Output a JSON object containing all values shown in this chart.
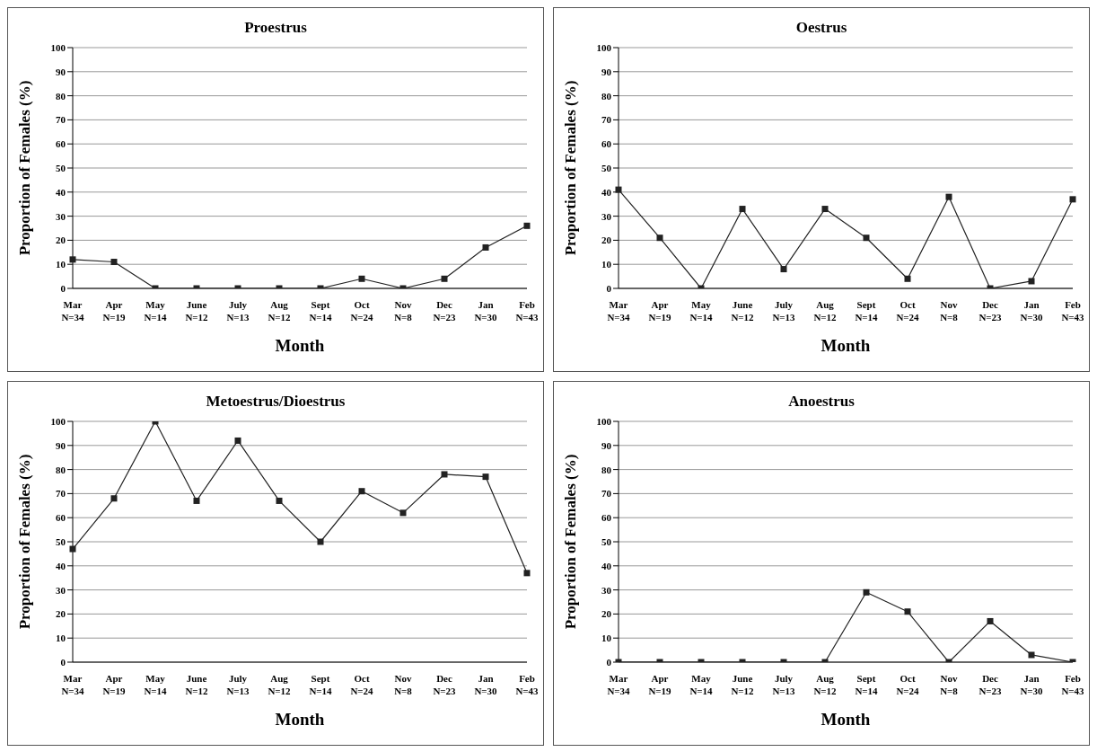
{
  "chart_data": [
    {
      "type": "line",
      "title": "Proestrus",
      "xlabel": "Month",
      "ylabel": "Proportion of Females (%)",
      "categories": [
        "Mar\nN=34",
        "Apr\nN=19",
        "May\nN=14",
        "June\nN=12",
        "July\nN=13",
        "Aug\nN=12",
        "Sept\nN=14",
        "Oct\nN=24",
        "Nov\nN=8",
        "Dec\nN=23",
        "Jan\nN=30",
        "Feb\nN=43"
      ],
      "series": [
        {
          "color": "#222222",
          "values": [
            12,
            11,
            0,
            0,
            0,
            0,
            0,
            4,
            0,
            4,
            17,
            26
          ]
        }
      ],
      "ylim": [
        0,
        100
      ],
      "yticks": [
        0,
        10,
        20,
        30,
        40,
        50,
        60,
        70,
        80,
        90,
        100
      ],
      "grid": "y",
      "marker": "square",
      "line_style": "solid"
    },
    {
      "type": "line",
      "title": "Oestrus",
      "xlabel": "Month",
      "ylabel": "Proportion of Females (%)",
      "categories": [
        "Mar\nN=34",
        "Apr\nN=19",
        "May\nN=14",
        "June\nN=12",
        "July\nN=13",
        "Aug\nN=12",
        "Sept\nN=14",
        "Oct\nN=24",
        "Nov\nN=8",
        "Dec\nN=23",
        "Jan\nN=30",
        "Feb\nN=43"
      ],
      "series": [
        {
          "color": "#222222",
          "values": [
            41,
            21,
            0,
            33,
            8,
            33,
            21,
            4,
            38,
            0,
            3,
            37
          ]
        }
      ],
      "ylim": [
        0,
        100
      ],
      "yticks": [
        0,
        10,
        20,
        30,
        40,
        50,
        60,
        70,
        80,
        90,
        100
      ],
      "grid": "y",
      "marker": "square",
      "line_style": "solid"
    },
    {
      "type": "line",
      "title": "Metoestrus/Dioestrus",
      "xlabel": "Month",
      "ylabel": "Proportion of Females (%)",
      "categories": [
        "Mar\nN=34",
        "Apr\nN=19",
        "May\nN=14",
        "June\nN=12",
        "July\nN=13",
        "Aug\nN=12",
        "Sept\nN=14",
        "Oct\nN=24",
        "Nov\nN=8",
        "Dec\nN=23",
        "Jan\nN=30",
        "Feb\nN=43"
      ],
      "series": [
        {
          "color": "#222222",
          "values": [
            47,
            68,
            100,
            67,
            92,
            67,
            50,
            71,
            62,
            78,
            77,
            37
          ]
        }
      ],
      "ylim": [
        0,
        100
      ],
      "yticks": [
        0,
        10,
        20,
        30,
        40,
        50,
        60,
        70,
        80,
        90,
        100
      ],
      "grid": "y",
      "marker": "square",
      "line_style": "solid"
    },
    {
      "type": "line",
      "title": "Anoestrus",
      "xlabel": "Month",
      "ylabel": "Proportion of Females (%)",
      "categories": [
        "Mar\nN=34",
        "Apr\nN=19",
        "May\nN=14",
        "June\nN=12",
        "July\nN=13",
        "Aug\nN=12",
        "Sept\nN=14",
        "Oct\nN=24",
        "Nov\nN=8",
        "Dec\nN=23",
        "Jan\nN=30",
        "Feb\nN=43"
      ],
      "series": [
        {
          "color": "#222222",
          "values": [
            0,
            0,
            0,
            0,
            0,
            0,
            29,
            21,
            0,
            17,
            3,
            0
          ]
        }
      ],
      "ylim": [
        0,
        100
      ],
      "yticks": [
        0,
        10,
        20,
        30,
        40,
        50,
        60,
        70,
        80,
        90,
        100
      ],
      "grid": "y",
      "marker": "square",
      "line_style": "solid"
    }
  ]
}
